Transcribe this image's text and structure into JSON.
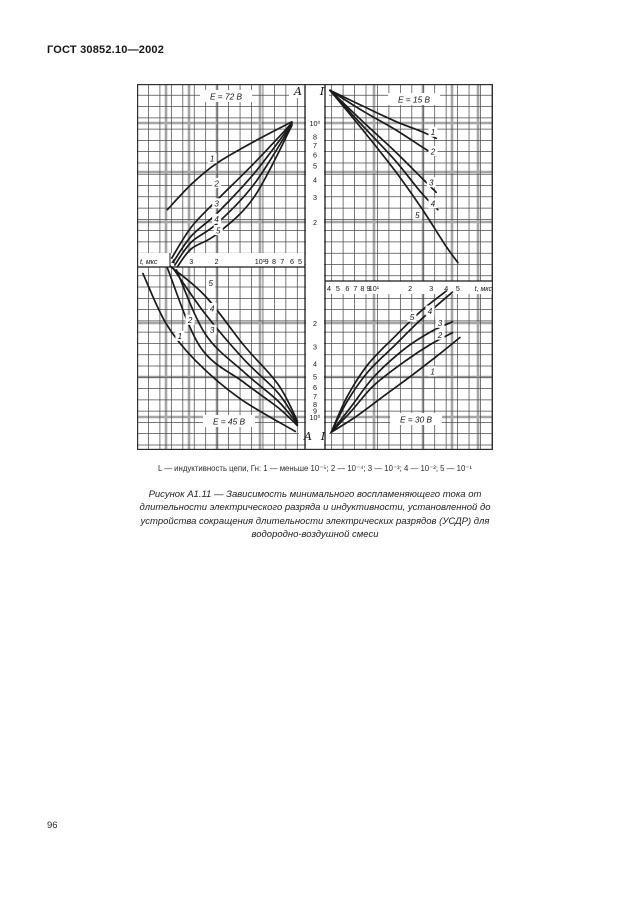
{
  "page": {
    "header": "ГОСТ 30852.10—2002",
    "page_number": "96"
  },
  "figure": {
    "legend": "L — индуктивность цепи, Гн: 1 — меньше 10⁻⁵; 2 — 10⁻⁴; 3 — 10⁻³; 4 — 10⁻²; 5 — 10⁻¹",
    "caption_lines": [
      "Рисунок А1.11 — Зависимость минимального воспламеняющего тока от",
      "длительности электрического разряда и индуктивности, установленной до",
      "устройства сокращения длительности электрических разрядов (УСДР) для",
      "водородно-воздушной смеси"
    ]
  },
  "chart_data": {
    "type": "line",
    "description": "Four-quadrant log-log nomogram: minimum igniting current I (A) vs discharge duration t (мкс) for five inductance values, at four source voltages",
    "x_axis": {
      "label_left": "t, мкс",
      "label_right": "t, мкс",
      "scale": "log"
    },
    "y_axis": {
      "letter_amperes": "A",
      "letter_current": "I",
      "scale": "log"
    },
    "ticks": {
      "time_left": [
        {
          "v": 40,
          "l": "4"
        },
        {
          "v": 30,
          "l": "3"
        },
        {
          "v": 20,
          "l": "2"
        },
        {
          "v": 10,
          "l": "10¹"
        },
        {
          "v": 9,
          "l": "9"
        },
        {
          "v": 8,
          "l": "8"
        },
        {
          "v": 7,
          "l": "7"
        },
        {
          "v": 6,
          "l": "6"
        },
        {
          "v": 5,
          "l": "5"
        }
      ],
      "time_right": [
        {
          "v": 4,
          "l": "4"
        },
        {
          "v": 5,
          "l": "5"
        },
        {
          "v": 6,
          "l": "6"
        },
        {
          "v": 7,
          "l": "7"
        },
        {
          "v": 8,
          "l": "8"
        },
        {
          "v": 9,
          "l": "9"
        },
        {
          "v": 10,
          "l": "10¹"
        },
        {
          "v": 20,
          "l": "2"
        },
        {
          "v": 30,
          "l": "3"
        },
        {
          "v": 40,
          "l": "4"
        },
        {
          "v": 50,
          "l": "5"
        }
      ],
      "current_top": [
        {
          "v": 1,
          "l": "10⁰"
        },
        {
          "v": 0.8,
          "l": "8"
        },
        {
          "v": 0.7,
          "l": "7"
        },
        {
          "v": 0.6,
          "l": "6"
        },
        {
          "v": 0.5,
          "l": "5"
        },
        {
          "v": 0.4,
          "l": "4"
        },
        {
          "v": 0.3,
          "l": "3"
        },
        {
          "v": 0.2,
          "l": "2"
        }
      ],
      "current_bottom": [
        {
          "v": 0.2,
          "l": "2"
        },
        {
          "v": 0.3,
          "l": "3"
        },
        {
          "v": 0.4,
          "l": "4"
        },
        {
          "v": 0.5,
          "l": "5"
        },
        {
          "v": 0.6,
          "l": "6"
        },
        {
          "v": 0.7,
          "l": "7"
        },
        {
          "v": 0.8,
          "l": "8"
        },
        {
          "v": 0.9,
          "l": "9"
        },
        {
          "v": 1,
          "l": "10⁰"
        }
      ]
    },
    "quadrants": [
      {
        "id": "TL",
        "position": "top-left",
        "voltage": "E = 72 В",
        "series": [
          {
            "name": "1",
            "label_at": [
              21.5,
              0.56
            ],
            "points": [
              [
                44,
                0.245
              ],
              [
                30,
                0.37
              ],
              [
                20,
                0.52
              ],
              [
                11,
                0.74
              ],
              [
                6,
                1.02
              ]
            ]
          },
          {
            "name": "2",
            "label_at": [
              20,
              0.375
            ],
            "points": [
              [
                41,
                0.112
              ],
              [
                30,
                0.185
              ],
              [
                20,
                0.285
              ],
              [
                11,
                0.52
              ],
              [
                6,
                1.0
              ]
            ]
          },
          {
            "name": "3",
            "label_at": [
              20,
              0.27
            ],
            "points": [
              [
                40,
                0.105
              ],
              [
                30,
                0.16
              ],
              [
                20,
                0.23
              ],
              [
                11,
                0.44
              ],
              [
                6,
                0.99
              ]
            ]
          },
          {
            "name": "4",
            "label_at": [
              20,
              0.21
            ],
            "points": [
              [
                39,
                0.1
              ],
              [
                30,
                0.145
              ],
              [
                20,
                0.195
              ],
              [
                11,
                0.37
              ],
              [
                6,
                0.975
              ]
            ]
          },
          {
            "name": "5",
            "label_at": [
              19.5,
              0.175
            ],
            "points": [
              [
                37.5,
                0.097
              ],
              [
                30,
                0.13
              ],
              [
                20,
                0.165
              ],
              [
                11,
                0.3
              ],
              [
                6,
                0.96
              ]
            ]
          }
        ]
      },
      {
        "id": "TR",
        "position": "top-right",
        "voltage": "E = 15 В",
        "series": [
          {
            "name": "1",
            "label_at": [
              31,
              0.86
            ],
            "points": [
              [
                4.3,
                1.7
              ],
              [
                8,
                1.32
              ],
              [
                15,
                1.03
              ],
              [
                25,
                0.87
              ],
              [
                33,
                0.78
              ]
            ]
          },
          {
            "name": "2",
            "label_at": [
              31,
              0.63
            ],
            "points": [
              [
                4.3,
                1.7
              ],
              [
                8,
                1.22
              ],
              [
                15,
                0.9
              ],
              [
                25,
                0.68
              ],
              [
                33,
                0.59
              ]
            ]
          },
          {
            "name": "3",
            "label_at": [
              30,
              0.38
            ],
            "points": [
              [
                4.3,
                1.7
              ],
              [
                8,
                1.03
              ],
              [
                15,
                0.63
              ],
              [
                25,
                0.41
              ],
              [
                33,
                0.325
              ]
            ]
          },
          {
            "name": "4",
            "label_at": [
              31,
              0.27
            ],
            "points": [
              [
                4.3,
                1.7
              ],
              [
                8,
                0.96
              ],
              [
                15,
                0.545
              ],
              [
                25,
                0.32
              ],
              [
                34,
                0.245
              ]
            ]
          },
          {
            "name": "5",
            "label_at": [
              23,
              0.225
            ],
            "points": [
              [
                4.3,
                1.7
              ],
              [
                8,
                0.9
              ],
              [
                15,
                0.46
              ],
              [
                25,
                0.25
              ],
              [
                40,
                0.135
              ],
              [
                50,
                0.104
              ]
            ]
          }
        ]
      },
      {
        "id": "BL",
        "position": "bottom-left",
        "voltage": "E = 45 В",
        "series": [
          {
            "name": "1",
            "label_at": [
              36,
              0.25
            ],
            "points": [
              [
                65,
                0.085
              ],
              [
                45,
                0.2
              ],
              [
                28,
                0.38
              ],
              [
                14,
                0.72
              ],
              [
                5.7,
                1.28
              ]
            ]
          },
          {
            "name": "2",
            "label_at": [
              30.6,
              0.19
            ],
            "points": [
              [
                44,
                0.077
              ],
              [
                26,
                0.3
              ],
              [
                13,
                0.55
              ],
              [
                7.5,
                0.85
              ],
              [
                5.5,
                1.16
              ]
            ]
          },
          {
            "name": "3",
            "label_at": [
              21.5,
              0.225
            ],
            "points": [
              [
                38,
                0.08
              ],
              [
                24,
                0.24
              ],
              [
                13,
                0.46
              ],
              [
                7.5,
                0.76
              ],
              [
                5.5,
                1.13
              ]
            ]
          },
          {
            "name": "4",
            "label_at": [
              21.5,
              0.155
            ],
            "points": [
              [
                40,
                0.078
              ],
              [
                24,
                0.17
              ],
              [
                13,
                0.37
              ],
              [
                7.5,
                0.66
              ],
              [
                5.5,
                1.1
              ]
            ]
          },
          {
            "name": "5",
            "label_at": [
              22,
              0.1
            ],
            "points": [
              [
                42,
                0.075
              ],
              [
                24,
                0.125
              ],
              [
                13,
                0.29
              ],
              [
                7.5,
                0.57
              ],
              [
                5.5,
                1.07
              ]
            ]
          }
        ]
      },
      {
        "id": "BR",
        "position": "bottom-right",
        "voltage": "E = 30 В",
        "series": [
          {
            "name": "1",
            "label_at": [
              30.8,
              0.46
            ],
            "points": [
              [
                4.4,
                1.3
              ],
              [
                7,
                1.0
              ],
              [
                12,
                0.7
              ],
              [
                20,
                0.5
              ],
              [
                35,
                0.34
              ],
              [
                52,
                0.255
              ]
            ]
          },
          {
            "name": "2",
            "label_at": [
              35.5,
              0.245
            ],
            "points": [
              [
                4.4,
                1.3
              ],
              [
                6.5,
                0.9
              ],
              [
                10,
                0.58
              ],
              [
                18,
                0.385
              ],
              [
                30,
                0.285
              ],
              [
                45,
                0.235
              ]
            ]
          },
          {
            "name": "3",
            "label_at": [
              35.5,
              0.2
            ],
            "points": [
              [
                4.4,
                1.3
              ],
              [
                6.5,
                0.83
              ],
              [
                10,
                0.5
              ],
              [
                18,
                0.31
              ],
              [
                30,
                0.23
              ],
              [
                45,
                0.195
              ]
            ]
          },
          {
            "name": "4",
            "label_at": [
              29.3,
              0.162
            ],
            "points": [
              [
                4.4,
                1.3
              ],
              [
                6,
                0.76
              ],
              [
                9,
                0.455
              ],
              [
                15,
                0.29
              ],
              [
                25,
                0.185
              ],
              [
                45,
                0.117
              ]
            ]
          },
          {
            "name": "5",
            "label_at": [
              20.7,
              0.18
            ],
            "points": [
              [
                4.4,
                1.3
              ],
              [
                6,
                0.7
              ],
              [
                9,
                0.4
              ],
              [
                15,
                0.25
              ],
              [
                25,
                0.16
              ],
              [
                40,
                0.115
              ]
            ]
          }
        ]
      }
    ]
  }
}
